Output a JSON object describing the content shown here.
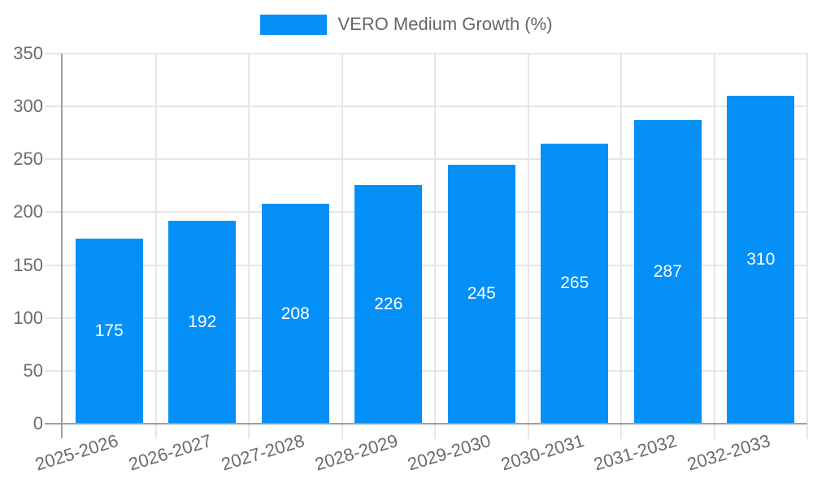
{
  "chart_data": {
    "type": "bar",
    "title": "",
    "legend_label": "VERO Medium Growth (%)",
    "legend_position": "top",
    "categories": [
      "2025-2026",
      "2026-2027",
      "2027-2028",
      "2028-2029",
      "2029-2030",
      "2030-2031",
      "2031-2032",
      "2032-2033"
    ],
    "series": [
      {
        "name": "VERO Medium Growth (%)",
        "values": [
          175,
          192,
          208,
          226,
          245,
          265,
          287,
          310
        ]
      }
    ],
    "value_labels": [
      "175",
      "192",
      "208",
      "226",
      "245",
      "265",
      "287",
      "310"
    ],
    "xlabel": "",
    "ylabel": "",
    "ylim": [
      0,
      350
    ],
    "yticks": [
      0,
      50,
      100,
      150,
      200,
      250,
      300,
      350
    ],
    "grid": true,
    "colors": {
      "bar": "#0590f8",
      "grid": "#e6e6e6",
      "axis": "#9e9e9e",
      "tick_label": "#6b6b6b",
      "legend_text": "#666666",
      "value_label": "#ffffff",
      "background": "#ffffff"
    }
  }
}
